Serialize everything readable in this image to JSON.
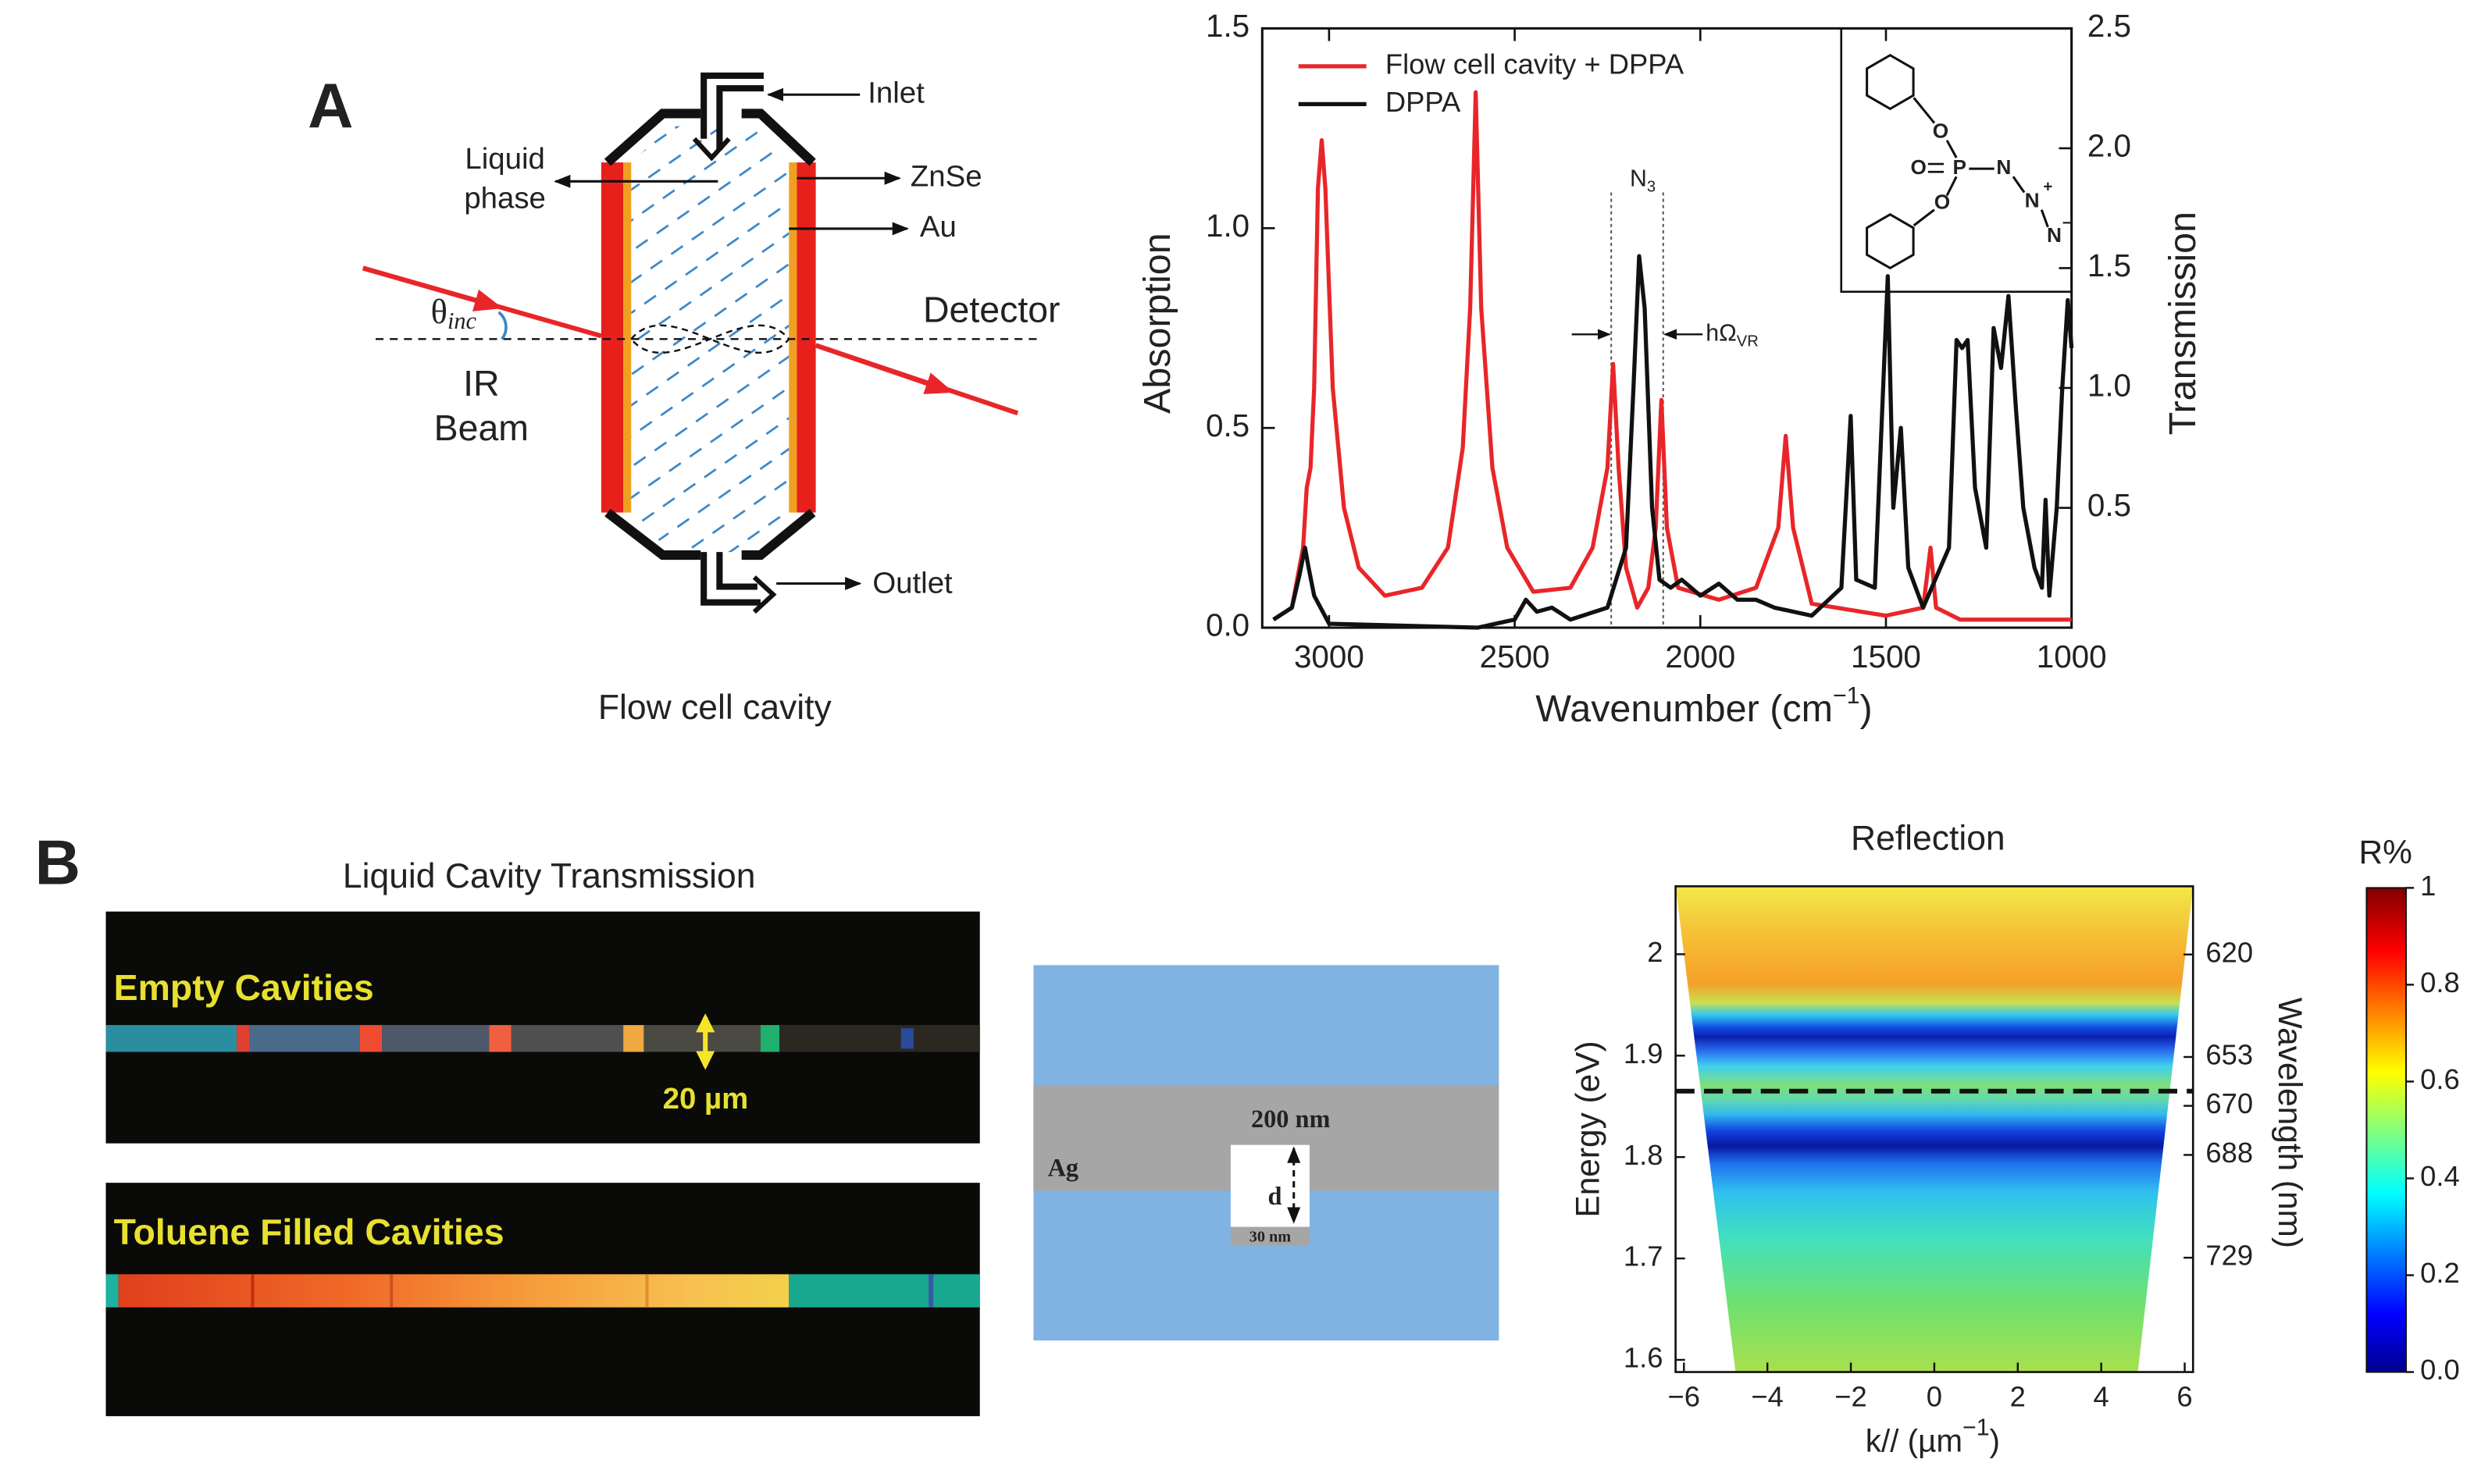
{
  "chart_data": [
    {
      "type": "line",
      "x_label": {
        "text": "Wavenumber (cm",
        "sup": "−1",
        "end": ")"
      },
      "y_label": "Absorption",
      "y2_label": "Transmission",
      "xlim": [
        3180,
        1000
      ],
      "xticks": [
        3000,
        2500,
        2000,
        1500,
        1000
      ],
      "ylim": [
        0,
        1.5
      ],
      "yticks": [
        {
          "value": 0,
          "label": "0.0"
        },
        0.5,
        {
          "value": 1,
          "label": "1.0"
        },
        1.5
      ],
      "y2lim": [
        0,
        2.5
      ],
      "y2ticks": [
        0.5,
        {
          "value": 1,
          "label": "1.0"
        },
        1.5,
        {
          "value": 2,
          "label": "2.0"
        },
        2.5
      ],
      "legend": "upper left",
      "series": [
        {
          "name": "Flow cell cavity + DPPA",
          "color": "#e8262a",
          "x": [
            3150,
            3100,
            3070,
            3060,
            3050,
            3040,
            3030,
            3020,
            3010,
            2990,
            2960,
            2920,
            2850,
            2750,
            2680,
            2640,
            2620,
            2605,
            2590,
            2560,
            2520,
            2450,
            2350,
            2290,
            2250,
            2235,
            2220,
            2200,
            2170,
            2140,
            2120,
            2105,
            2090,
            2060,
            1950,
            1850,
            1790,
            1770,
            1750,
            1700,
            1500,
            1400,
            1380,
            1365,
            1300,
            1000
          ],
          "values": [
            0.02,
            0.05,
            0.2,
            0.35,
            0.4,
            0.6,
            1.1,
            1.22,
            1.1,
            0.6,
            0.3,
            0.15,
            0.08,
            0.1,
            0.2,
            0.45,
            0.8,
            1.34,
            0.8,
            0.4,
            0.2,
            0.09,
            0.1,
            0.2,
            0.4,
            0.66,
            0.4,
            0.15,
            0.05,
            0.1,
            0.25,
            0.57,
            0.25,
            0.1,
            0.07,
            0.1,
            0.25,
            0.48,
            0.25,
            0.06,
            0.03,
            0.05,
            0.2,
            0.05,
            0.02,
            0.02
          ]
        },
        {
          "name": "DPPA",
          "color": "#111111",
          "x": [
            3150,
            3100,
            3080,
            3065,
            3055,
            3040,
            3000,
            2600,
            2500,
            2470,
            2440,
            2400,
            2350,
            2250,
            2200,
            2180,
            2165,
            2150,
            2130,
            2110,
            2080,
            2050,
            2000,
            1950,
            1900,
            1850,
            1800,
            1700,
            1620,
            1595,
            1580,
            1530,
            1495,
            1480,
            1460,
            1440,
            1400,
            1330,
            1310,
            1295,
            1280,
            1260,
            1230,
            1210,
            1190,
            1170,
            1150,
            1130,
            1100,
            1080,
            1070,
            1060,
            1040,
            1025,
            1010,
            1000
          ],
          "values": [
            0.02,
            0.05,
            0.13,
            0.2,
            0.15,
            0.08,
            0.01,
            0,
            0.02,
            0.07,
            0.04,
            0.05,
            0.02,
            0.05,
            0.2,
            0.6,
            0.93,
            0.8,
            0.3,
            0.12,
            0.1,
            0.12,
            0.08,
            0.11,
            0.07,
            0.07,
            0.05,
            0.03,
            0.1,
            0.53,
            0.12,
            0.1,
            0.88,
            0.3,
            0.5,
            0.15,
            0.05,
            0.2,
            0.72,
            0.7,
            0.72,
            0.35,
            0.2,
            0.75,
            0.65,
            0.83,
            0.55,
            0.3,
            0.15,
            0.1,
            0.32,
            0.08,
            0.3,
            0.6,
            0.82,
            0.7
          ]
        }
      ],
      "annotations": {
        "band": {
          "text": "N",
          "sub": "3",
          "x": [
            2240,
            2100
          ]
        },
        "splitting": {
          "text": "hΩ",
          "sub": "VR"
        }
      },
      "inset_atoms": [
        "O",
        "O",
        "P",
        "N",
        "N",
        "+",
        "N",
        "−",
        "O"
      ]
    },
    {
      "type": "heatmap",
      "title": "Reflection",
      "x_label": {
        "text": "k// (µm",
        "sup": "−1",
        "end": ")"
      },
      "y_label": "Energy (eV)",
      "y2_label": "Wavelength (nm)",
      "xlim": [
        -6.2,
        6.2
      ],
      "xticks": [
        {
          "value": -6,
          "label": "−6"
        },
        {
          "value": -4,
          "label": "−4"
        },
        {
          "value": -2,
          "label": "−2"
        },
        0,
        2,
        4,
        6
      ],
      "ylim": [
        1.588,
        2.067
      ],
      "yticks": [
        1.6,
        1.7,
        1.8,
        1.9,
        2
      ],
      "y2ticks": [
        620,
        653,
        670,
        688,
        729
      ],
      "marker_energy": 1.865,
      "colorbar": {
        "title": "R%",
        "lim": [
          0,
          1
        ],
        "ticks": [
          {
            "value": 0,
            "label": "0.0"
          },
          0.2,
          0.4,
          0.6,
          0.8,
          1
        ]
      }
    }
  ],
  "panel_a": {
    "label": "A",
    "caption": "Flow cell cavity",
    "labels": {
      "inlet": "Inlet",
      "liquid": "Liquid",
      "phase": "phase",
      "znse": "ZnSe",
      "au": "Au",
      "theta": "θ",
      "theta_sub": "inc",
      "detector": "Detector",
      "ir": "IR",
      "beam": "Beam",
      "outlet": "Outlet"
    }
  },
  "panel_b": {
    "label": "B",
    "title": "Liquid Cavity Transmission",
    "images": [
      {
        "label": "Empty Cavities"
      },
      {
        "label": "Toluene Filled Cavities"
      }
    ],
    "scale": "20 µm",
    "schematic": {
      "thickness": "200 nm",
      "metal": "Ag",
      "gap": "d",
      "bottom": "30 nm"
    }
  }
}
